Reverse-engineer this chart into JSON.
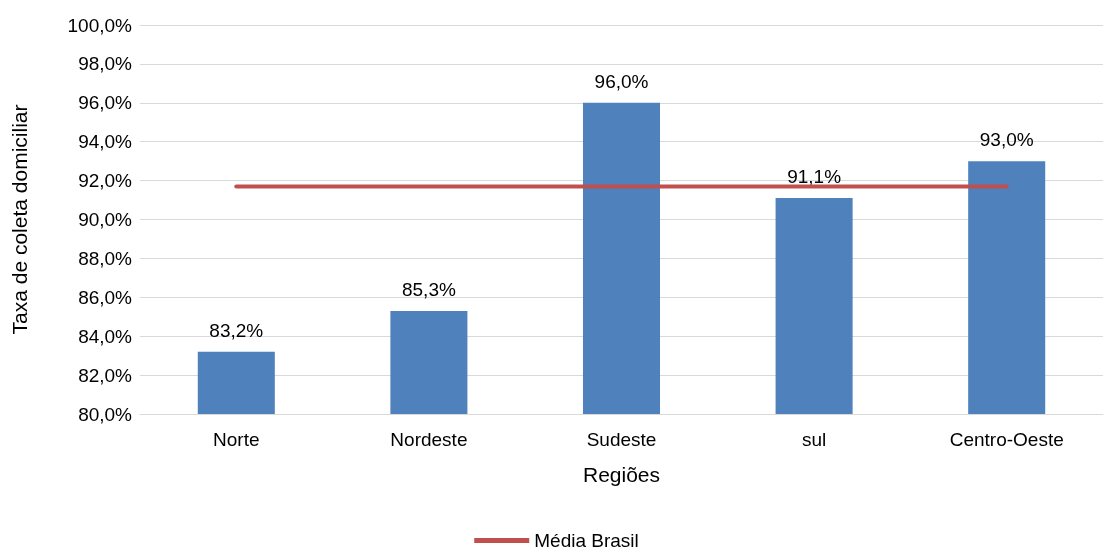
{
  "chart_data": {
    "type": "bar",
    "xlabel": "Regiões",
    "ylabel": "Taxa de coleta domiciliar",
    "categories": [
      "Norte",
      "Nordeste",
      "Sudeste",
      "sul",
      "Centro-Oeste"
    ],
    "series": [
      {
        "color": "#4f81bd",
        "values": [
          83.2,
          85.3,
          96.0,
          91.1,
          93.0
        ],
        "value_labels": [
          "83,2%",
          "85,3%",
          "96,0%",
          "91,1%",
          "93,0%"
        ]
      },
      {
        "type": "line",
        "name": "Média Brasil",
        "color": "#c0504d",
        "values": [
          91.7,
          91.7,
          91.7,
          91.7,
          91.7
        ],
        "marker": "none"
      }
    ],
    "ylim": [
      80,
      100
    ],
    "yticks": [
      {
        "value": 80,
        "label": "80,0%"
      },
      {
        "value": 82,
        "label": "82,0%"
      },
      {
        "value": 84,
        "label": "84,0%"
      },
      {
        "value": 86,
        "label": "86,0%"
      },
      {
        "value": 88,
        "label": "88,0%"
      },
      {
        "value": 90,
        "label": "90,0%"
      },
      {
        "value": 92,
        "label": "92,0%"
      },
      {
        "value": 94,
        "label": "94,0%"
      },
      {
        "value": 96,
        "label": "96,0%"
      },
      {
        "value": 98,
        "label": "98,0%"
      },
      {
        "value": 100,
        "label": "100,0%"
      }
    ],
    "grid": "y",
    "legend": "bottom"
  }
}
